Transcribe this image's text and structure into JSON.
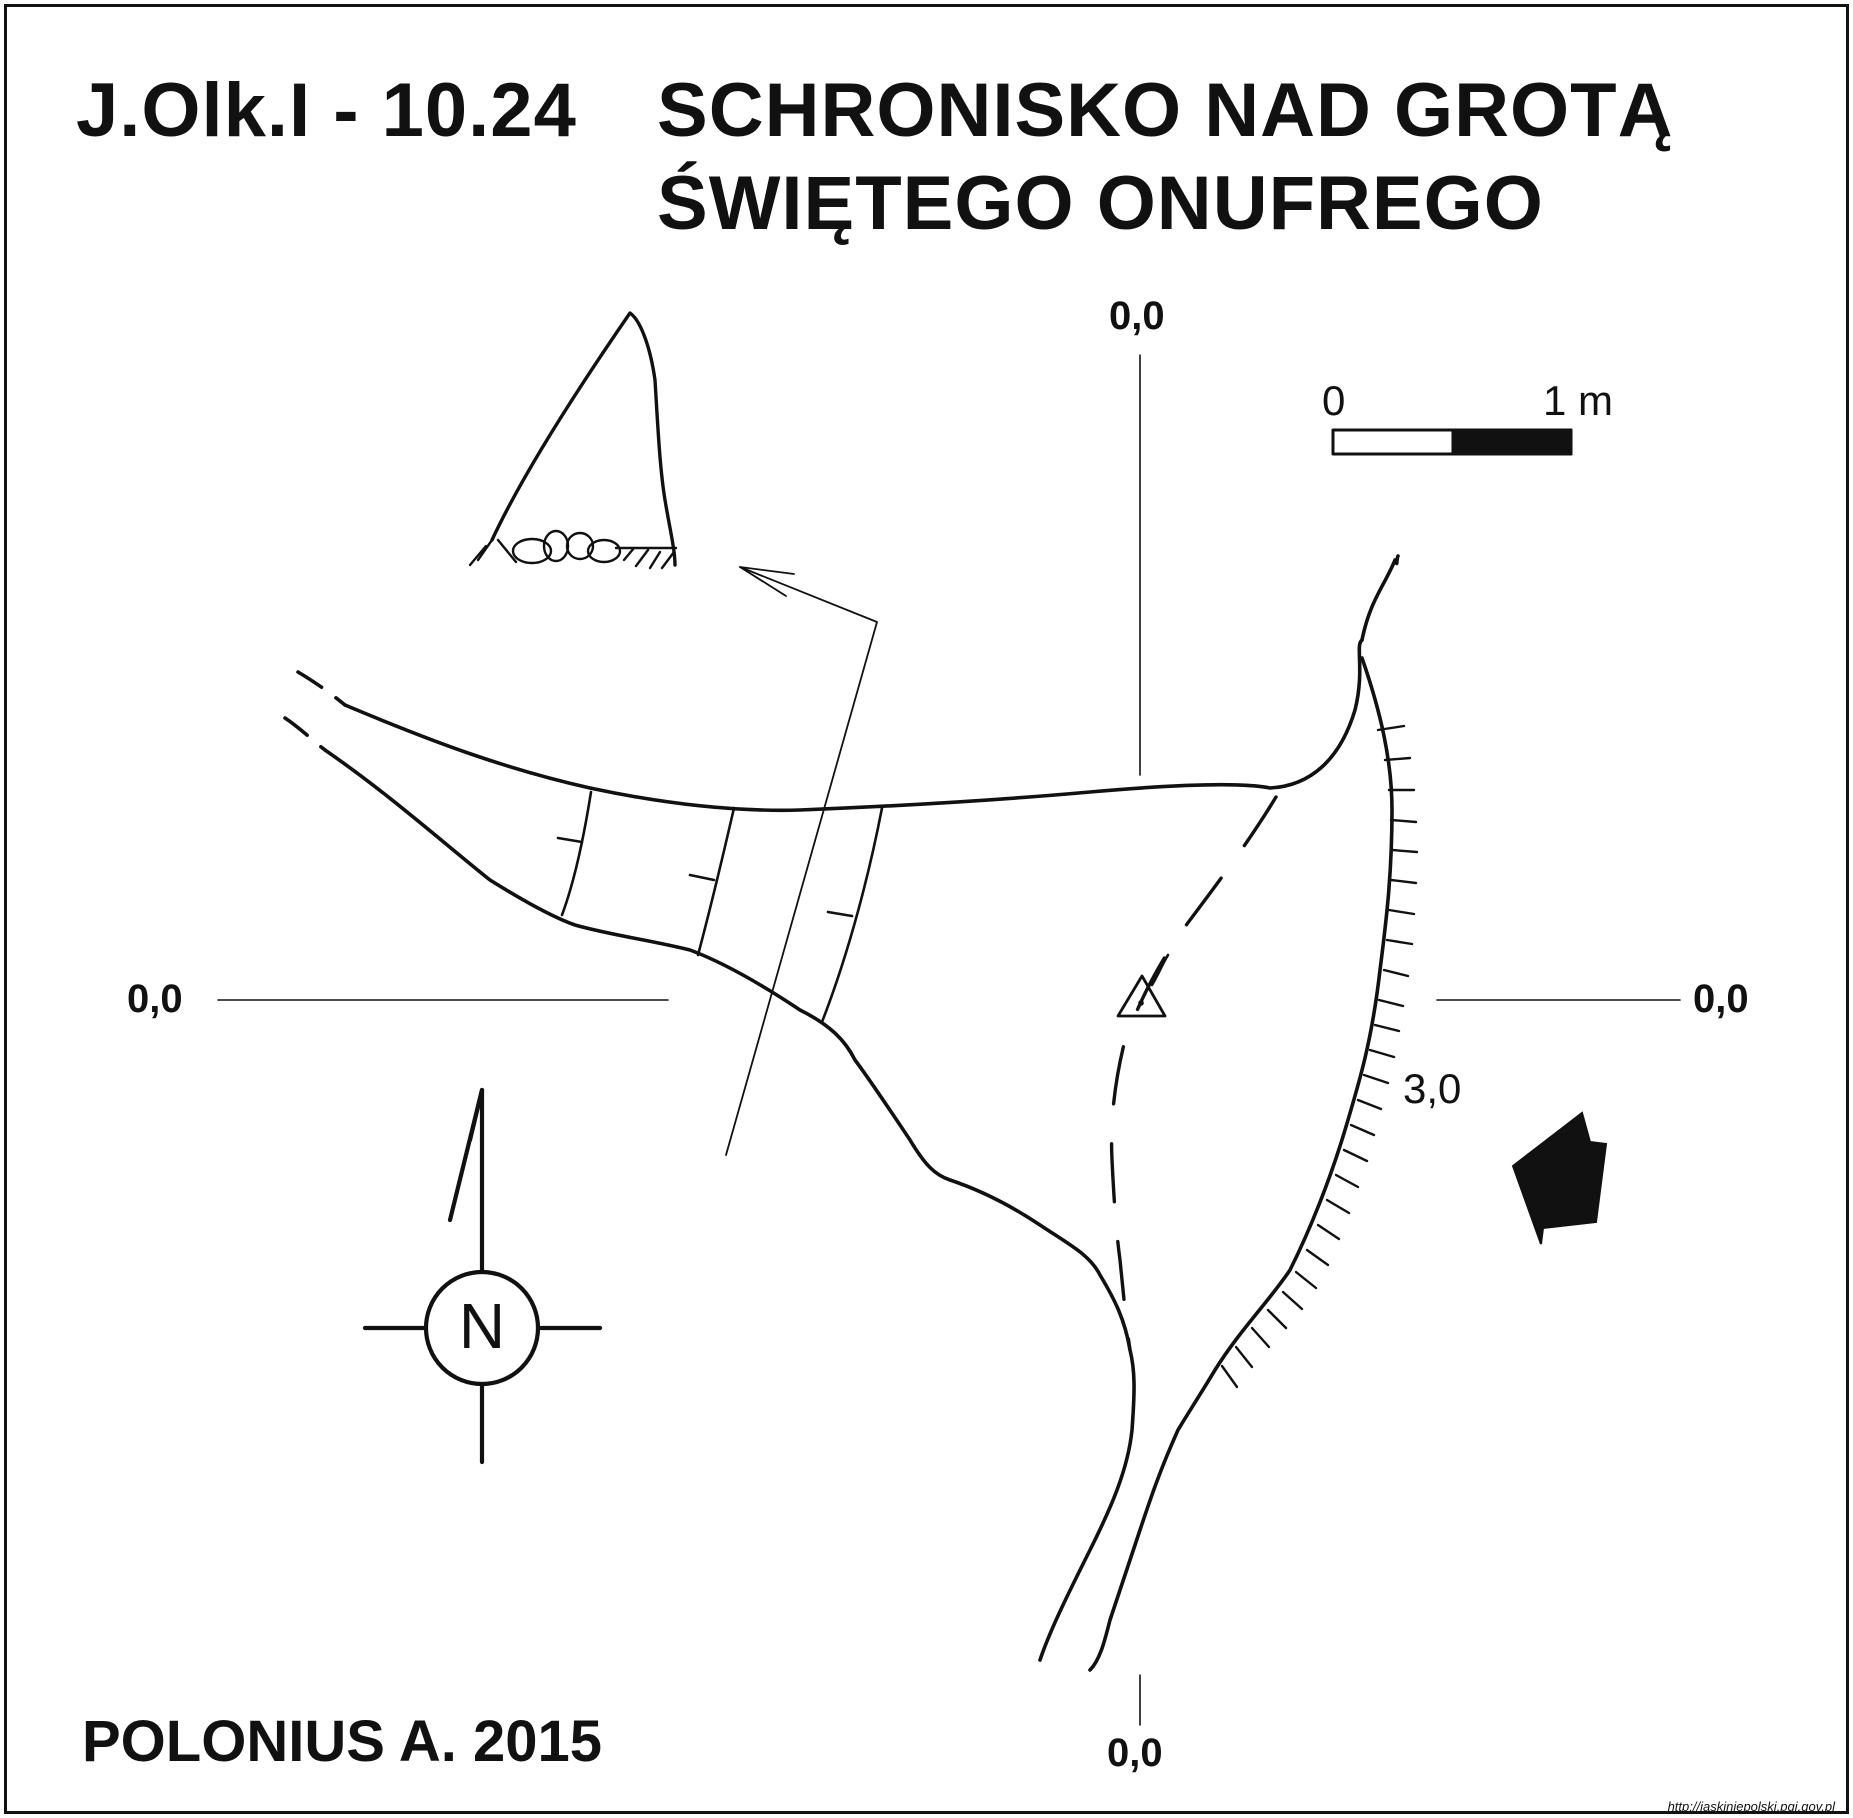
{
  "header": {
    "cave_id": "J.Olk.I - 10.24",
    "name_line1": "SCHRONISKO NAD GROTĄ",
    "name_line2": "ŚWIĘTEGO ONUFREGO"
  },
  "datum_labels": {
    "top": "0,0",
    "bottom": "0,0",
    "left": "0,0",
    "right": "0,0"
  },
  "scale_bar": {
    "start_label": "0",
    "end_label": "1 m"
  },
  "height_marker": "3,0",
  "north_arrow": {
    "letter": "N"
  },
  "author": "POLONIUS A. 2015",
  "source": "http://jaskiniepolski.pgi.gov.pl",
  "icons": [
    "north-arrow-icon",
    "entrance-arrow-icon",
    "survey-station-icon",
    "rubble-icon"
  ],
  "colors": {
    "ink": "#111111",
    "paper": "#ffffff"
  }
}
